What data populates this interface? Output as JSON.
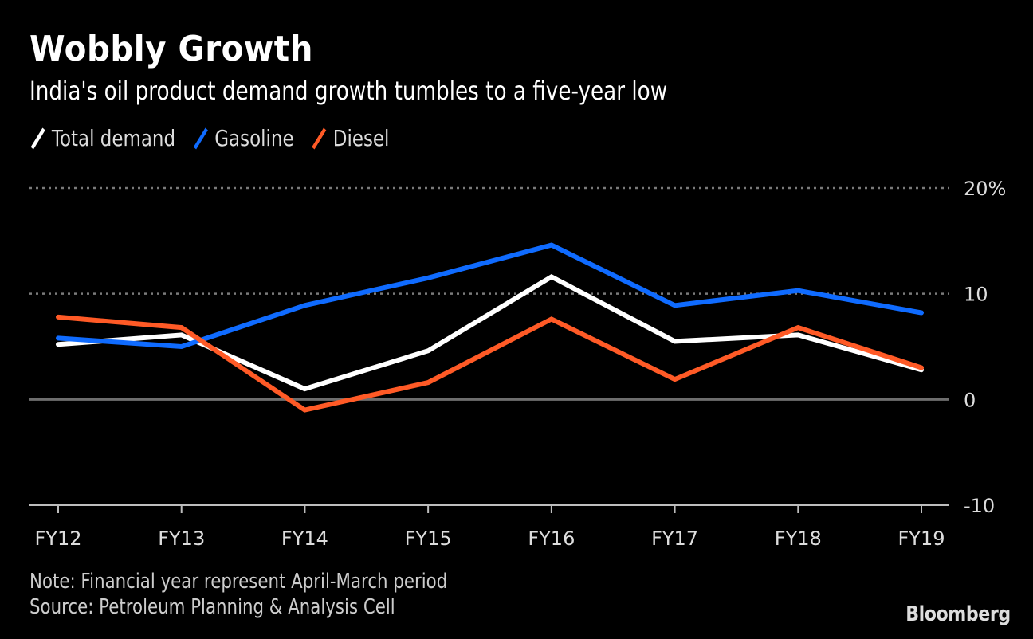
{
  "header": {
    "title": "Wobbly Growth",
    "subtitle": "India's oil product demand growth tumbles to a five-year low"
  },
  "legend": [
    {
      "label": "Total demand",
      "color": "#ffffff"
    },
    {
      "label": "Gasoline",
      "color": "#0f6bff"
    },
    {
      "label": "Diesel",
      "color": "#ff5a26"
    }
  ],
  "footer": {
    "note": "Note: Financial year represent April-March period",
    "source": "Source: Petroleum Planning & Analysis Cell",
    "brand": "Bloomberg"
  },
  "chart_data": {
    "type": "line",
    "title": "Wobbly Growth",
    "subtitle": "India's oil product demand growth tumbles to a five-year low",
    "xlabel": "",
    "ylabel": "",
    "categories": [
      "FY12",
      "FY13",
      "FY14",
      "FY15",
      "FY16",
      "FY17",
      "FY18",
      "FY19"
    ],
    "series": [
      {
        "name": "Total demand",
        "color": "#ffffff",
        "values": [
          5.2,
          6.1,
          1.0,
          4.6,
          11.6,
          5.5,
          6.1,
          2.8
        ]
      },
      {
        "name": "Gasoline",
        "color": "#0f6bff",
        "values": [
          5.8,
          5.0,
          8.9,
          11.5,
          14.6,
          8.9,
          10.3,
          8.2
        ]
      },
      {
        "name": "Diesel",
        "color": "#ff5a26",
        "values": [
          7.8,
          6.8,
          -1.0,
          1.6,
          7.6,
          1.9,
          6.8,
          3.0
        ]
      }
    ],
    "ylim": [
      -10,
      20
    ],
    "yticks": [
      {
        "value": 20,
        "label": "20%"
      },
      {
        "value": 10,
        "label": "10"
      },
      {
        "value": 0,
        "label": "0"
      },
      {
        "value": -10,
        "label": "-10"
      }
    ],
    "grid": true,
    "legend_position": "top-left",
    "y_axis_side": "right"
  }
}
